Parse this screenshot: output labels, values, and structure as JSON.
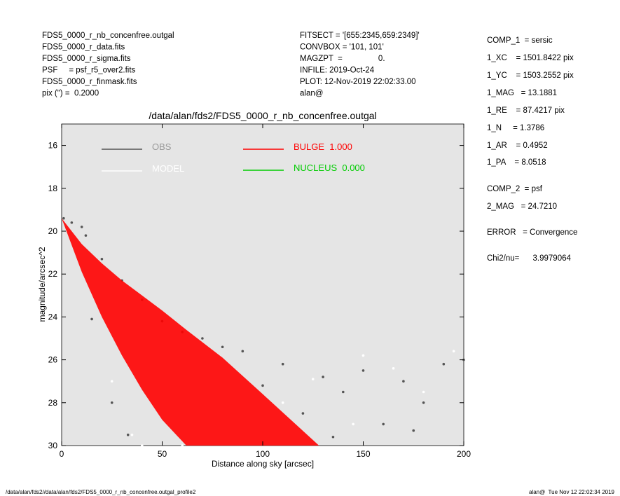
{
  "chart_data": {
    "type": "scatter",
    "title": "/data/alan/fds2/FDS5_0000_r_nb_concenfree.outgal",
    "x_label": "Distance along sky [arcsec]",
    "y_label": "magnitude/arcsec^2",
    "xlim": [
      0,
      200
    ],
    "xticks": [
      0,
      50,
      100,
      150,
      200
    ],
    "ylim": [
      15,
      30
    ],
    "yticks": [
      16,
      18,
      20,
      22,
      24,
      26,
      28,
      30
    ],
    "y_inverted": true,
    "background": "#e5e5e5",
    "series": [
      {
        "name": "OBS",
        "color": "#555555",
        "draw": "points",
        "x": [
          1,
          5,
          10,
          12,
          20,
          30,
          40,
          50,
          60,
          70,
          80,
          90,
          15,
          25,
          33,
          110,
          130,
          150,
          170,
          190,
          120,
          160,
          140,
          180,
          200,
          100,
          135,
          175
        ],
        "values": [
          19.4,
          19.6,
          19.8,
          20.2,
          21.3,
          22.3,
          23.2,
          24.2,
          24.7,
          25.0,
          25.4,
          25.6,
          24.1,
          28.0,
          29.5,
          26.2,
          26.8,
          26.5,
          27.0,
          26.2,
          28.5,
          29.0,
          27.5,
          28.0,
          26.0,
          27.2,
          29.6,
          29.3
        ]
      },
      {
        "name": "MODEL",
        "color": "#ffffff",
        "draw": "points",
        "x": [
          25,
          35,
          40,
          60,
          110,
          150,
          180,
          195,
          145,
          165,
          125
        ],
        "values": [
          27.0,
          29.5,
          30.0,
          30.0,
          28.0,
          25.8,
          27.5,
          25.6,
          29.0,
          26.4,
          26.9
        ]
      },
      {
        "name": "BULGE  1.000",
        "color": "#ff0000",
        "draw": "band",
        "x": [
          0,
          10,
          20,
          30,
          40,
          50,
          62,
          80,
          100,
          128
        ],
        "values": [
          19.4,
          20.6,
          21.5,
          22.3,
          23.0,
          23.7,
          24.6,
          25.9,
          27.6,
          30
        ],
        "low": [
          19.4,
          21.9,
          24.0,
          25.8,
          27.4,
          28.8,
          30,
          30,
          30,
          30
        ]
      },
      {
        "name": "NUCLEUS  0.000",
        "color": "#00cc00",
        "draw": "points",
        "x": [],
        "values": []
      }
    ],
    "info_left": [
      "FDS5_0000_r_nb_concenfree.outgal",
      "FDS5_0000_r_data.fits",
      "FDS5_0000_r_sigma.fits",
      "PSF     = psf_r5_over2.fits",
      "FDS5_0000_r_finmask.fits",
      "pix (\") =  0.2000"
    ],
    "info_mid": [
      "FITSECT = '[655:2345,659:2349]'",
      "CONVBOX = '101, 101'",
      "MAGZPT  =                0.",
      "INFILE: 2019-Oct-24",
      "PLOT: 12-Nov-2019 22:02:33.00",
      "alan@"
    ],
    "info_right": [
      "COMP_1  = sersic",
      "1_XC    = 1501.8422 pix",
      "1_YC    = 1503.2552 pix",
      "1_MAG   = 13.1881",
      "1_RE    = 87.4217 pix",
      "1_N     = 1.3786",
      "1_AR    = 0.4952",
      "1_PA    = 8.0518",
      "COMP_2  = psf",
      "2_MAG   = 24.7210",
      "ERROR   = Convergence",
      "Chi2/nu=      3.9979064"
    ],
    "footer_left": "/data/alan/fds2//data/alan/fds2/FDS5_0000_r_nb_concenfree.outgal_profile2",
    "footer_right": "alan@  Tue Nov 12 22:02:34 2019"
  }
}
